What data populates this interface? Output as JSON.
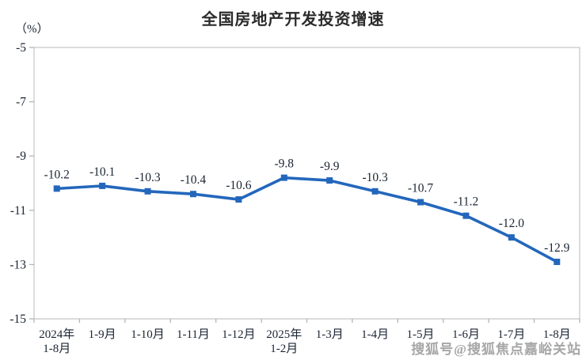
{
  "page": {
    "title": "全国房地产开发投资增速",
    "unit_label": "（%）",
    "watermark": "搜狐号@搜狐焦点嘉峪关站"
  },
  "chart_data": {
    "type": "line",
    "title": "全国房地产开发投资增速",
    "xlabel": "",
    "ylabel": "（%）",
    "categories": [
      "2024年\n1-8月",
      "1-9月",
      "1-10月",
      "1-11月",
      "1-12月",
      "2025年\n1-2月",
      "1-3月",
      "1-4月",
      "1-5月",
      "1-6月",
      "1-7月",
      "1-8月"
    ],
    "values": [
      -10.2,
      -10.1,
      -10.3,
      -10.4,
      -10.6,
      -9.8,
      -9.9,
      -10.3,
      -10.7,
      -11.2,
      -12.0,
      -12.9
    ],
    "data_labels": [
      "-10.2",
      "-10.1",
      "-10.3",
      "-10.4",
      "-10.6",
      "-9.8",
      "-9.9",
      "-10.3",
      "-10.7",
      "-11.2",
      "-12.0",
      "-12.9"
    ],
    "ylim": [
      -15,
      -5
    ],
    "yticks": [
      -5,
      -7,
      -9,
      -11,
      -13,
      -15
    ],
    "grid": false,
    "legend": "none",
    "marker": "square"
  },
  "colors": {
    "line": "#2367bc",
    "marker": "#2367bc",
    "plot_border": "#c9c9c9",
    "tick": "#b5b5b5",
    "axis_text": "#1b2433",
    "data_label_text": "#1b2433",
    "title_text": "#2b2b2b",
    "watermark_text": "#a6a6a6",
    "background": "#ffffff"
  }
}
